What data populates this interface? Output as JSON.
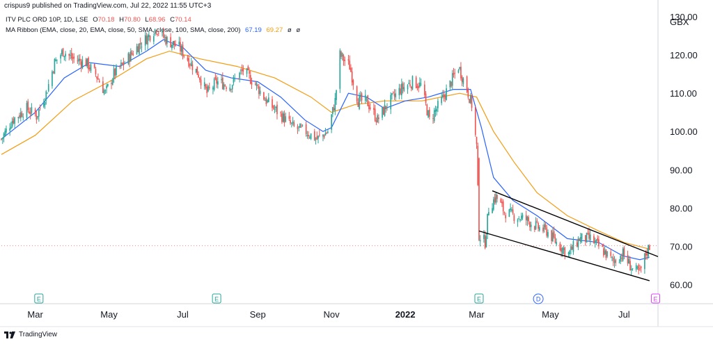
{
  "header": {
    "published_by": "crispus9 published on TradingView.com, Jul 22, 2022 11:55 UTC+3"
  },
  "legend": {
    "symbol": "ITV PLC ORD 10P, 1D, LSE",
    "ohlc": {
      "o_label": "O",
      "o": "70.18",
      "h_label": "H",
      "h": "70.80",
      "l_label": "L",
      "l": "68.96",
      "c_label": "C",
      "c": "70.14"
    },
    "ribbon_label": "MA Ribbon (EMA, close, 20, EMA, close, 50, SMA, close, 100, SMA, close, 200)",
    "ma20": "67.19",
    "ma50": "69.27",
    "na1": "ø",
    "na2": "ø"
  },
  "footer": {
    "brand": "TradingView"
  },
  "colors": {
    "up": "#26a69a",
    "down": "#ef5350",
    "ma_fast": "#2962ff",
    "ma_slow": "#f39c12",
    "channel": "#000000",
    "earnings_green": "#26a69a",
    "earnings_purple": "#e040fb",
    "dividend": "#2962ff"
  },
  "chart_data": {
    "type": "candlestick",
    "currency": "GBX",
    "ylim": [
      55,
      134
    ],
    "yticks": [
      "130.00",
      "120.00",
      "110.00",
      "100.00",
      "90.00",
      "80.00",
      "70.00",
      "60.00"
    ],
    "ytick_values": [
      130,
      120,
      110,
      100,
      90,
      80,
      70,
      60
    ],
    "x_range": [
      "2021-02-01",
      "2022-07-29"
    ],
    "xticks": [
      {
        "label": "Mar",
        "date": "2021-03-01",
        "bold": false
      },
      {
        "label": "May",
        "date": "2021-05-01",
        "bold": false
      },
      {
        "label": "Jul",
        "date": "2021-07-01",
        "bold": false
      },
      {
        "label": "Sep",
        "date": "2021-09-01",
        "bold": false
      },
      {
        "label": "Nov",
        "date": "2021-11-01",
        "bold": false
      },
      {
        "label": "2022",
        "date": "2022-01-01",
        "bold": true
      },
      {
        "label": "Mar",
        "date": "2022-03-01",
        "bold": false
      },
      {
        "label": "May",
        "date": "2022-05-01",
        "bold": false
      },
      {
        "label": "Jul",
        "date": "2022-07-01",
        "bold": false
      }
    ],
    "last_price": 70.14,
    "close_path": [
      [
        "2021-02-01",
        98
      ],
      [
        "2021-02-10",
        103
      ],
      [
        "2021-02-22",
        106
      ],
      [
        "2021-03-02",
        104
      ],
      [
        "2021-03-10",
        110
      ],
      [
        "2021-03-17",
        118
      ],
      [
        "2021-03-24",
        121
      ],
      [
        "2021-04-01",
        119
      ],
      [
        "2021-04-12",
        118
      ],
      [
        "2021-04-20",
        115
      ],
      [
        "2021-04-28",
        110
      ],
      [
        "2021-05-05",
        115
      ],
      [
        "2021-05-14",
        118
      ],
      [
        "2021-05-24",
        122
      ],
      [
        "2021-06-03",
        125
      ],
      [
        "2021-06-09",
        127
      ],
      [
        "2021-06-17",
        124
      ],
      [
        "2021-06-28",
        122
      ],
      [
        "2021-07-05",
        119
      ],
      [
        "2021-07-14",
        115
      ],
      [
        "2021-07-21",
        110
      ],
      [
        "2021-07-29",
        113
      ],
      [
        "2021-08-09",
        112
      ],
      [
        "2021-08-20",
        116
      ],
      [
        "2021-08-31",
        112
      ],
      [
        "2021-09-08",
        108
      ],
      [
        "2021-09-21",
        104
      ],
      [
        "2021-10-01",
        101
      ],
      [
        "2021-10-11",
        100
      ],
      [
        "2021-10-20",
        98
      ],
      [
        "2021-10-29",
        100
      ],
      [
        "2021-11-04",
        108
      ],
      [
        "2021-11-08",
        120
      ],
      [
        "2021-11-16",
        117
      ],
      [
        "2021-11-23",
        108
      ],
      [
        "2021-11-30",
        108
      ],
      [
        "2021-12-09",
        103
      ],
      [
        "2021-12-17",
        107
      ],
      [
        "2021-12-28",
        111
      ],
      [
        "2022-01-07",
        113
      ],
      [
        "2022-01-14",
        112
      ],
      [
        "2022-01-21",
        103
      ],
      [
        "2022-01-31",
        108
      ],
      [
        "2022-02-08",
        113
      ],
      [
        "2022-02-14",
        117
      ],
      [
        "2022-02-21",
        111
      ],
      [
        "2022-02-25",
        107
      ],
      [
        "2022-03-01",
        96
      ],
      [
        "2022-03-03",
        73
      ],
      [
        "2022-03-08",
        71
      ],
      [
        "2022-03-11",
        80
      ],
      [
        "2022-03-17",
        83
      ],
      [
        "2022-03-24",
        79
      ],
      [
        "2022-04-01",
        78
      ],
      [
        "2022-04-11",
        77
      ],
      [
        "2022-04-20",
        75
      ],
      [
        "2022-04-28",
        74
      ],
      [
        "2022-05-06",
        71
      ],
      [
        "2022-05-16",
        68
      ],
      [
        "2022-05-25",
        72
      ],
      [
        "2022-06-03",
        72
      ],
      [
        "2022-06-13",
        69
      ],
      [
        "2022-06-22",
        66
      ],
      [
        "2022-06-30",
        68
      ],
      [
        "2022-07-08",
        64
      ],
      [
        "2022-07-14",
        63
      ],
      [
        "2022-07-19",
        68
      ],
      [
        "2022-07-22",
        70.14
      ]
    ],
    "ma_fast_path": [
      [
        "2021-02-01",
        98
      ],
      [
        "2021-03-01",
        105
      ],
      [
        "2021-03-25",
        114
      ],
      [
        "2021-04-15",
        118
      ],
      [
        "2021-05-10",
        117
      ],
      [
        "2021-06-01",
        121
      ],
      [
        "2021-06-15",
        124
      ],
      [
        "2021-07-01",
        122
      ],
      [
        "2021-07-20",
        116
      ],
      [
        "2021-08-10",
        114
      ],
      [
        "2021-09-01",
        113
      ],
      [
        "2021-09-20",
        109
      ],
      [
        "2021-10-10",
        103
      ],
      [
        "2021-10-25",
        100
      ],
      [
        "2021-11-01",
        101
      ],
      [
        "2021-11-15",
        110
      ],
      [
        "2021-11-30",
        109
      ],
      [
        "2021-12-15",
        106
      ],
      [
        "2022-01-01",
        108
      ],
      [
        "2022-01-20",
        109
      ],
      [
        "2022-02-10",
        111
      ],
      [
        "2022-02-24",
        111
      ],
      [
        "2022-03-05",
        101
      ],
      [
        "2022-03-15",
        88
      ],
      [
        "2022-03-31",
        82
      ],
      [
        "2022-04-20",
        78
      ],
      [
        "2022-05-15",
        72
      ],
      [
        "2022-06-10",
        71
      ],
      [
        "2022-06-30",
        67.5
      ],
      [
        "2022-07-14",
        66.5
      ],
      [
        "2022-07-22",
        67.19
      ]
    ],
    "ma_slow_path": [
      [
        "2021-02-01",
        94
      ],
      [
        "2021-03-01",
        99
      ],
      [
        "2021-04-01",
        108
      ],
      [
        "2021-05-01",
        113
      ],
      [
        "2021-06-01",
        119
      ],
      [
        "2021-06-20",
        121
      ],
      [
        "2021-07-15",
        119
      ],
      [
        "2021-08-15",
        117
      ],
      [
        "2021-09-15",
        114
      ],
      [
        "2021-10-15",
        109
      ],
      [
        "2021-11-01",
        105
      ],
      [
        "2021-11-20",
        107
      ],
      [
        "2021-12-15",
        108
      ],
      [
        "2022-01-15",
        108
      ],
      [
        "2022-02-15",
        110
      ],
      [
        "2022-03-01",
        109
      ],
      [
        "2022-03-15",
        100
      ],
      [
        "2022-04-01",
        92
      ],
      [
        "2022-04-20",
        84
      ],
      [
        "2022-05-15",
        78
      ],
      [
        "2022-06-10",
        74
      ],
      [
        "2022-07-01",
        71
      ],
      [
        "2022-07-22",
        69.27
      ]
    ],
    "channel_lines": [
      {
        "from": [
          "2022-03-14",
          84.5
        ],
        "to": [
          "2022-07-29",
          67.3
        ]
      },
      {
        "from": [
          "2022-03-03",
          74
        ],
        "to": [
          "2022-07-22",
          61
        ]
      }
    ],
    "events": [
      {
        "date": "2021-03-04",
        "label": "E",
        "kind": "earnings"
      },
      {
        "date": "2021-07-29",
        "label": "E",
        "kind": "earnings"
      },
      {
        "date": "2022-03-03",
        "label": "E",
        "kind": "earnings"
      },
      {
        "date": "2022-04-21",
        "label": "D",
        "kind": "dividend"
      },
      {
        "date": "2022-07-27",
        "label": "E",
        "kind": "earnings_upcoming"
      }
    ]
  }
}
